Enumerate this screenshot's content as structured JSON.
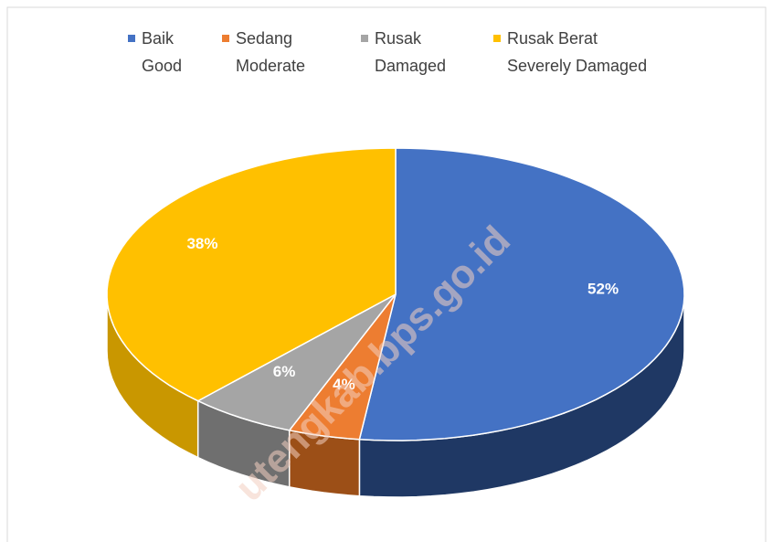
{
  "chart_data": {
    "type": "pie3d",
    "categories": [
      "Baik",
      "Sedang",
      "Rusak",
      "Rusak Berat"
    ],
    "category_subtitles": [
      "Good",
      "Moderate",
      "Damaged",
      "Severely Damaged"
    ],
    "values": [
      52,
      4,
      6,
      38
    ],
    "value_labels": [
      "52%",
      "4%",
      "6%",
      "38%"
    ],
    "colors": [
      "#4472c4",
      "#ed7d31",
      "#a5a5a5",
      "#ffc000"
    ],
    "side_colors": [
      "#1f3864",
      "#9c4f17",
      "#6f6f6f",
      "#c99700"
    ],
    "watermark": "utengkab.bps.go.id",
    "legend": "top"
  }
}
